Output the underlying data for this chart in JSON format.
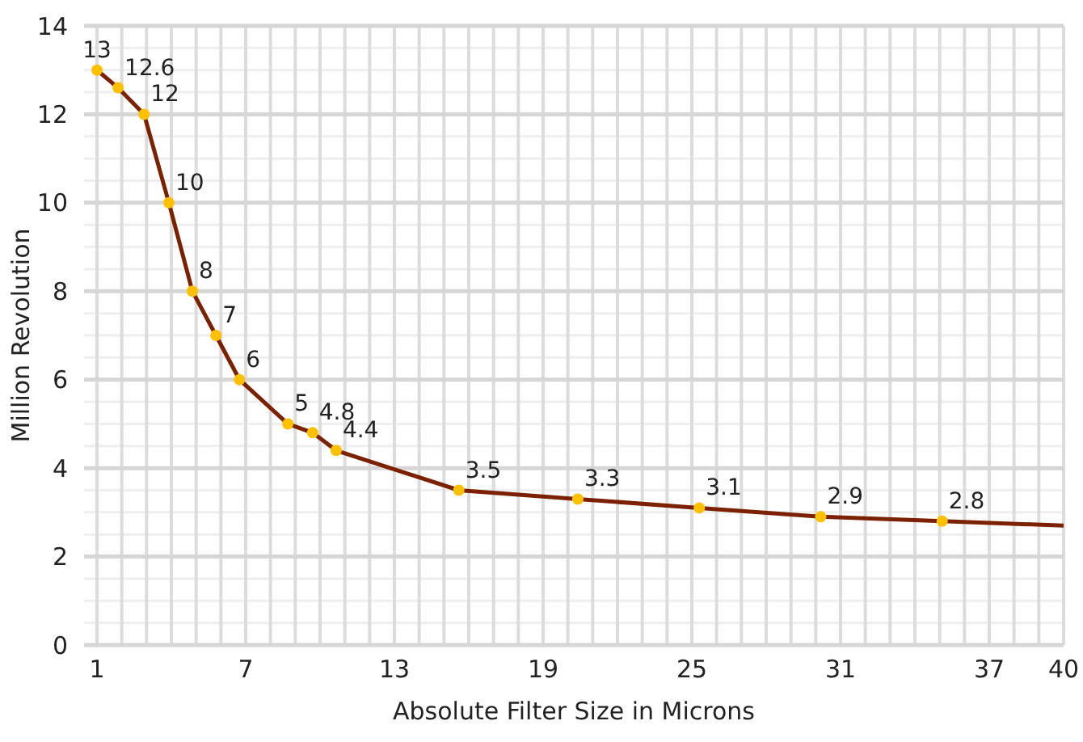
{
  "chart_data": {
    "type": "line",
    "xlabel": "Absolute Filter Size in Microns",
    "ylabel": "Million Revolution",
    "x": [
      1,
      1.85,
      2.9,
      3.9,
      4.85,
      5.8,
      6.75,
      8.7,
      9.7,
      10.65,
      15.6,
      20.4,
      25.3,
      30.2,
      35.1,
      40
    ],
    "series": [
      {
        "color": "#7b2100",
        "colors": [
          "#ffc000",
          "#ffc000",
          "#ffc000",
          "#ffc000",
          "#ffc000",
          "#ffc000",
          "#ffc000",
          "#ffc000",
          "#ffc000",
          "#ffc000",
          "#ffc000",
          "#ffc000",
          "#ffc000",
          "#ffc000",
          "#ffc000",
          null
        ],
        "values": [
          13,
          12.6,
          12,
          10,
          8,
          7,
          6,
          5,
          4.8,
          4.4,
          3.5,
          3.3,
          3.1,
          2.9,
          2.8,
          2.7
        ],
        "value_labels": [
          "13",
          "12.6",
          "12",
          "10",
          "8",
          "7",
          "6",
          "5",
          "4.8",
          "4.4",
          "3.5",
          "3.3",
          "3.1",
          "2.9",
          "2.8",
          null
        ]
      }
    ],
    "xlim": [
      1,
      40
    ],
    "xticks": [
      1,
      7,
      13,
      19,
      25,
      31,
      37,
      40
    ],
    "ylim": [
      0,
      14
    ],
    "yticks": [
      0,
      2,
      4,
      6,
      8,
      10,
      12,
      14
    ],
    "grid": true,
    "marker": "circle",
    "line_style": "solid"
  }
}
